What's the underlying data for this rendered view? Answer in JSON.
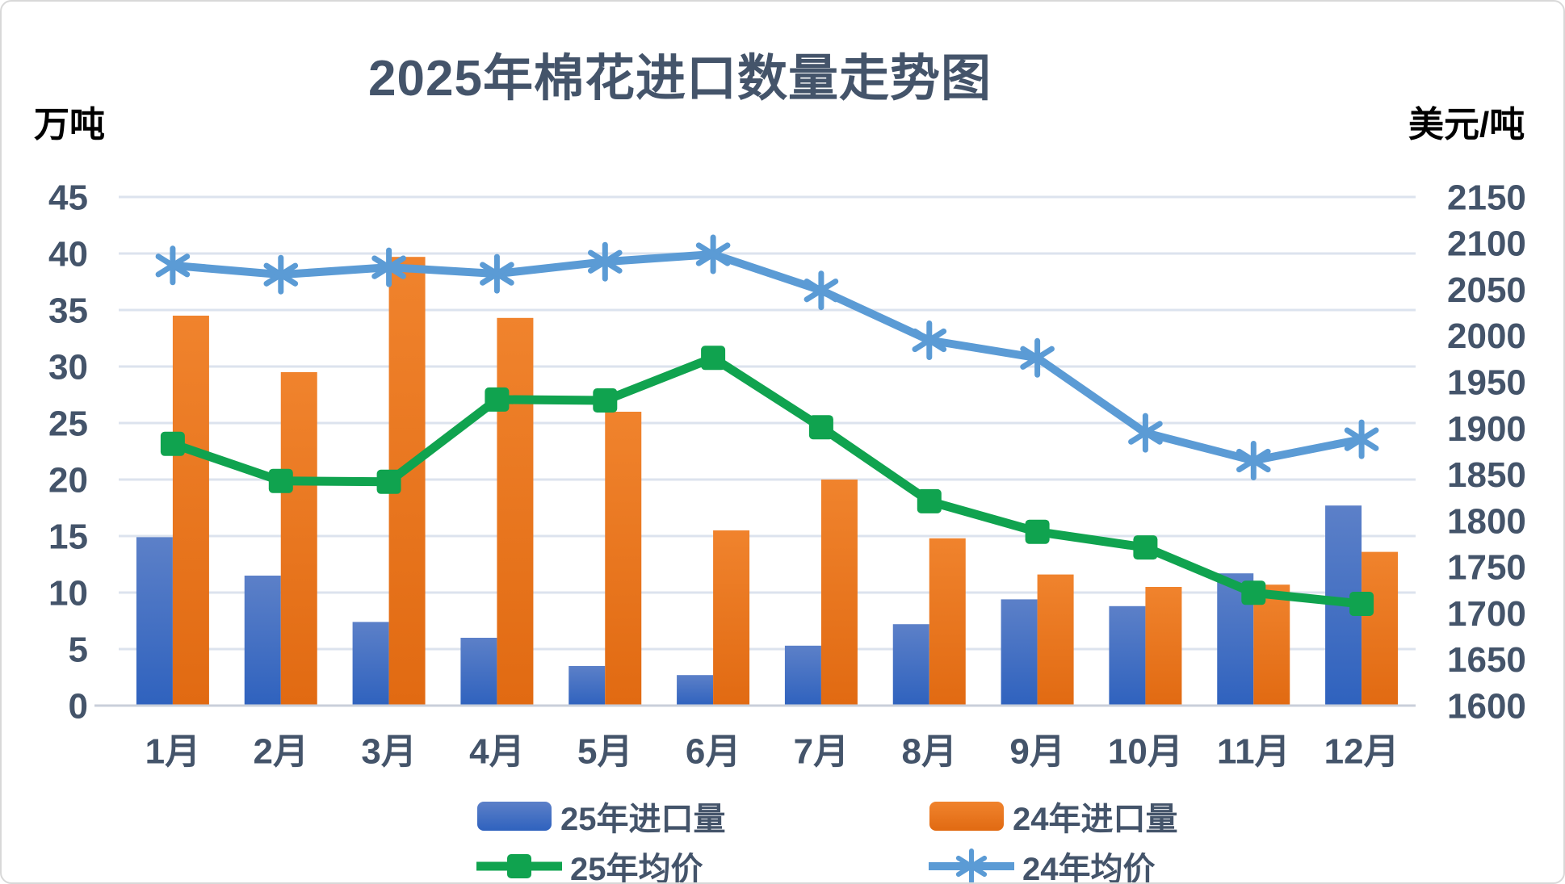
{
  "chart_data": {
    "type": "combo",
    "title": "2025年棉花进口数量走势图",
    "categories": [
      "1月",
      "2月",
      "3月",
      "4月",
      "5月",
      "6月",
      "7月",
      "8月",
      "9月",
      "10月",
      "11月",
      "12月"
    ],
    "axis_left": {
      "label": "万吨",
      "min": 0,
      "max": 45,
      "step": 5,
      "ticks": [
        45,
        40,
        35,
        30,
        25,
        20,
        15,
        10,
        5,
        0
      ]
    },
    "axis_right": {
      "label": "美元/吨",
      "min": 1600,
      "max": 2150,
      "step": 50,
      "ticks": [
        2150,
        2100,
        2050,
        2000,
        1950,
        1900,
        1850,
        1800,
        1750,
        1700,
        1650,
        1600
      ]
    },
    "grid": true,
    "legend_position": "bottom",
    "series": [
      {
        "name": "25年进口量",
        "type": "bar",
        "axis": "left",
        "marker": "none",
        "gradient": [
          "#5C80C8",
          "#2F62BE"
        ],
        "color": "#3A66C0",
        "values": [
          14.9,
          11.5,
          7.4,
          6.0,
          3.5,
          2.7,
          5.3,
          7.2,
          9.4,
          8.8,
          11.7,
          17.7
        ]
      },
      {
        "name": "24年进口量",
        "type": "bar",
        "axis": "left",
        "marker": "none",
        "gradient": [
          "#F0832D",
          "#E16A12"
        ],
        "color": "#E8751D",
        "values": [
          34.5,
          29.5,
          39.7,
          34.3,
          26.0,
          15.5,
          20.0,
          14.8,
          11.6,
          10.5,
          10.7,
          13.6
        ]
      },
      {
        "name": "25年均价",
        "type": "line",
        "axis": "right",
        "marker": "square",
        "color": "#10A34F",
        "values": [
          1883,
          1843,
          1842,
          1931,
          1930,
          1976,
          1901,
          1821,
          1788,
          1771,
          1722,
          1710
        ]
      },
      {
        "name": "24年均价",
        "type": "line",
        "axis": "right",
        "marker": "asterisk",
        "color": "#5B9BD5",
        "values": [
          2076,
          2066,
          2074,
          2067,
          2080,
          2088,
          2049,
          1995,
          1976,
          1895,
          1865,
          1888
        ]
      }
    ],
    "colors": {
      "tick_text": "#44546A",
      "unit_text": "#000000",
      "gridline": "#DCE3EE",
      "baseline": "#C9CFDA"
    }
  }
}
